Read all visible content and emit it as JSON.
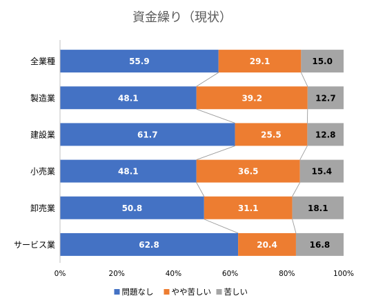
{
  "chart_data": {
    "type": "bar",
    "orientation": "horizontal",
    "stacked": "percent",
    "title": "資金繰り（現状）",
    "categories": [
      "全業種",
      "製造業",
      "建設業",
      "小売業",
      "卸売業",
      "サービス業"
    ],
    "series": [
      {
        "name": "問題なし",
        "color": "#4472C4",
        "label_color": "#FFFFFF",
        "values": [
          55.9,
          48.1,
          61.7,
          48.1,
          50.8,
          62.8
        ]
      },
      {
        "name": "やや苦しい",
        "color": "#ED7D31",
        "label_color": "#FFFFFF",
        "values": [
          29.1,
          39.2,
          25.5,
          36.5,
          31.1,
          20.4
        ]
      },
      {
        "name": "苦しい",
        "color": "#A5A5A5",
        "label_color": "#000000",
        "values": [
          15.0,
          12.7,
          12.8,
          15.4,
          18.1,
          16.8
        ]
      }
    ],
    "xlim": [
      0,
      100
    ],
    "xticks": [
      "0%",
      "20%",
      "40%",
      "60%",
      "80%",
      "100%"
    ],
    "series_lines": true,
    "gridlines": false,
    "legend_position": "bottom"
  }
}
